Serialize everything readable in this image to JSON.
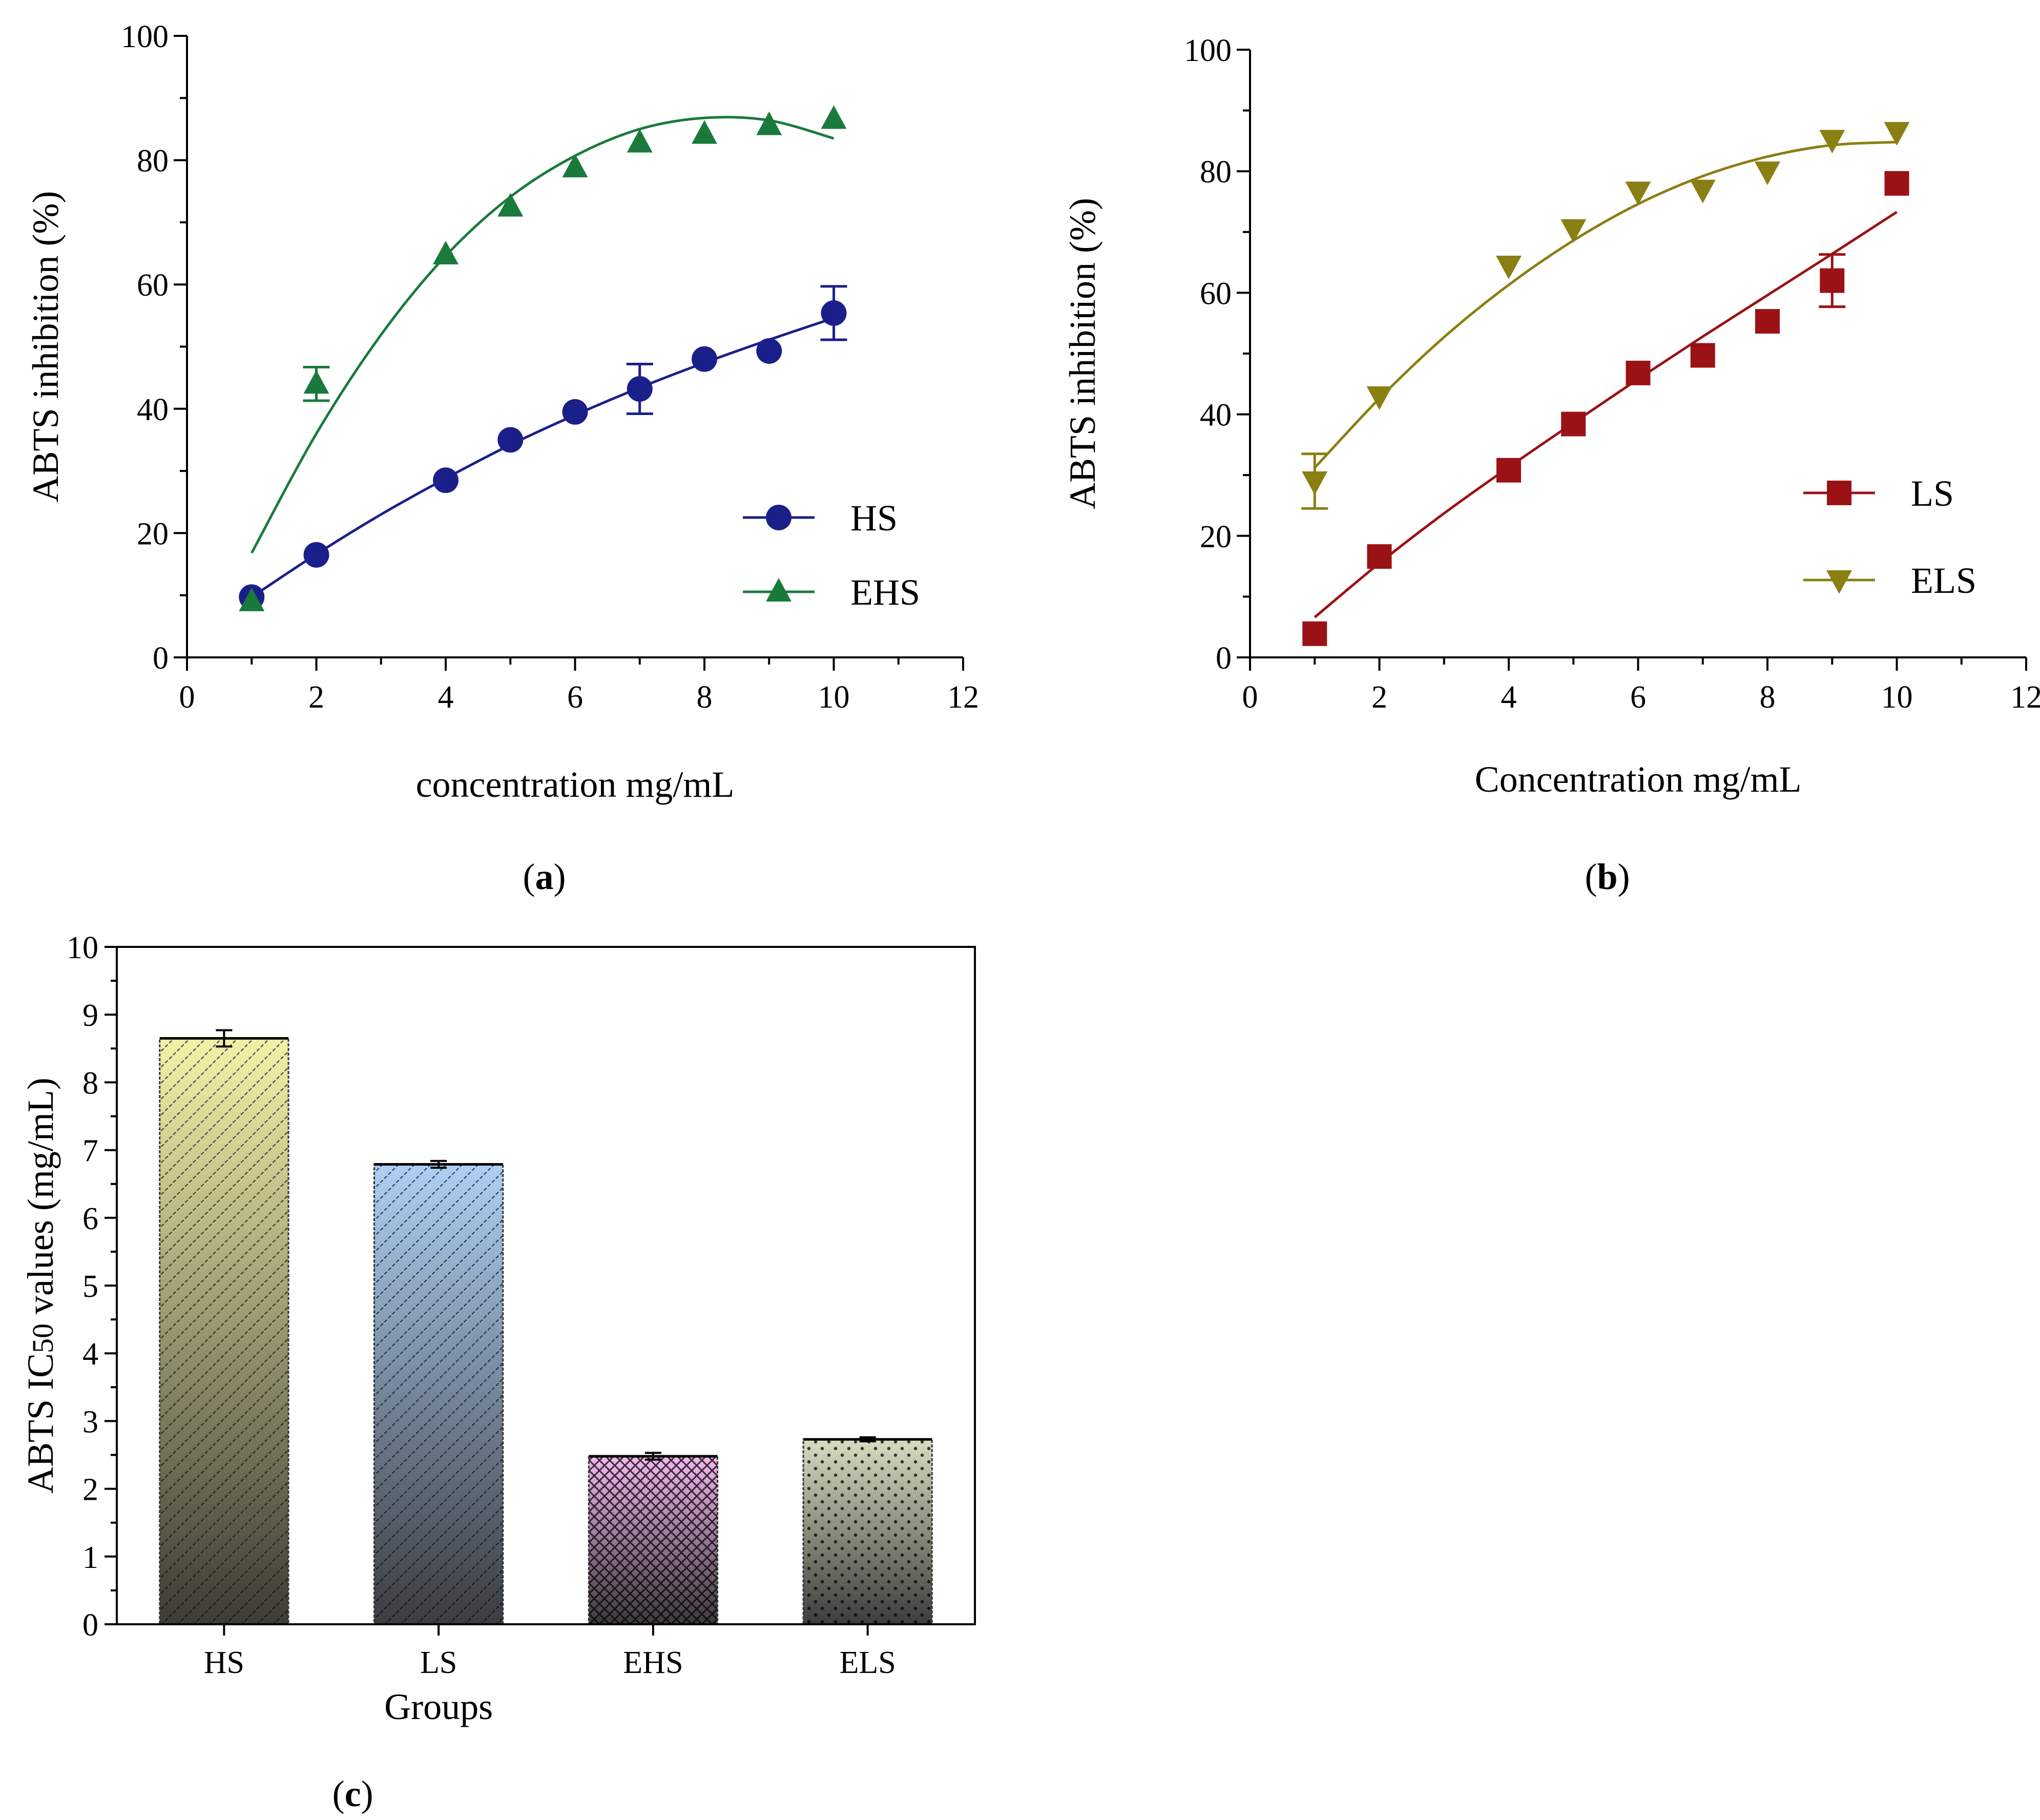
{
  "chart_data": [
    {
      "panel": "(a)",
      "type": "scatter",
      "xlabel": "concentration mg/mL",
      "ylabel": "ABTS inhibition (%)",
      "xlim": [
        0,
        12
      ],
      "ylim": [
        0,
        100
      ],
      "xticks": [
        0,
        2,
        4,
        6,
        8,
        10,
        12
      ],
      "yticks": [
        0,
        20,
        40,
        60,
        80,
        100
      ],
      "legend_position": "bottom-right",
      "fit_curves": true,
      "series": [
        {
          "name": "HS",
          "color": "#1b1f8a",
          "marker": "circle",
          "x": [
            1,
            2,
            4,
            5,
            6,
            7,
            8,
            9,
            10
          ],
          "y": [
            9.7,
            16.5,
            28.5,
            35.0,
            39.5,
            43.2,
            48.0,
            49.3,
            55.4
          ],
          "error": [
            0,
            0,
            0,
            0,
            0,
            4.0,
            0,
            0,
            4.3
          ],
          "fit_x": [
            1,
            2,
            3,
            4,
            5,
            6,
            7,
            8,
            9,
            10
          ],
          "fit_y": [
            9.7,
            16.6,
            23.0,
            28.8,
            34.2,
            39.0,
            43.4,
            47.4,
            51.1,
            54.6
          ]
        },
        {
          "name": "EHS",
          "color": "#1a7a3c",
          "marker": "triangle",
          "x": [
            1,
            2,
            4,
            5,
            6,
            7,
            8,
            9,
            10
          ],
          "y": [
            9.0,
            44.0,
            64.8,
            72.5,
            78.8,
            82.8,
            84.2,
            85.6,
            86.6
          ],
          "error": [
            0,
            2.7,
            0,
            0,
            0,
            0,
            0,
            0,
            0
          ],
          "fit_x": [
            1,
            2,
            3,
            4,
            5,
            6,
            7,
            8,
            9,
            10
          ],
          "fit_y": [
            16.8,
            36.0,
            51.9,
            64.6,
            74.1,
            80.7,
            85.0,
            86.8,
            86.4,
            83.5
          ]
        }
      ]
    },
    {
      "panel": "(b)",
      "type": "scatter",
      "xlabel": "Concentration mg/mL",
      "ylabel": "ABTS inhibition (%)",
      "xlim": [
        0,
        12
      ],
      "ylim": [
        0,
        100
      ],
      "xticks": [
        0,
        2,
        4,
        6,
        8,
        10,
        12
      ],
      "yticks": [
        0,
        20,
        40,
        60,
        80,
        100
      ],
      "legend_position": "bottom-right",
      "fit_curves": true,
      "series": [
        {
          "name": "LS",
          "color": "#9b1216",
          "marker": "square",
          "x": [
            1,
            2,
            4,
            5,
            6,
            7,
            8,
            9,
            10
          ],
          "y": [
            3.9,
            16.6,
            30.8,
            38.4,
            46.8,
            49.7,
            55.3,
            62.0,
            78.0
          ],
          "error": [
            0,
            0,
            0,
            0,
            0,
            0,
            0,
            4.3,
            0
          ],
          "fit_x": [
            1,
            2,
            3,
            4,
            5,
            6,
            7,
            8,
            9,
            10
          ],
          "fit_y": [
            6.6,
            15.5,
            23.7,
            31.3,
            38.6,
            45.8,
            52.8,
            59.6,
            66.4,
            73.3
          ]
        },
        {
          "name": "ELS",
          "color": "#8a7f12",
          "marker": "triangle-down",
          "x": [
            1,
            2,
            4,
            5,
            6,
            7,
            8,
            9,
            10
          ],
          "y": [
            29.0,
            43.0,
            64.5,
            70.5,
            76.7,
            77.0,
            80.0,
            85.2,
            86.5
          ],
          "error": [
            4.5,
            0,
            0,
            0,
            0,
            0,
            0,
            0,
            0
          ],
          "fit_x": [
            1,
            2,
            3,
            4,
            5,
            6,
            7,
            8,
            9,
            10
          ],
          "fit_y": [
            31.2,
            42.6,
            52.7,
            61.3,
            68.6,
            74.6,
            79.2,
            82.4,
            84.3,
            84.8
          ]
        }
      ]
    },
    {
      "panel": "(c)",
      "type": "bar",
      "xlabel": "Groups",
      "ylabel": "ABTS IC50 values (mg/mL)",
      "ylim": [
        0,
        10
      ],
      "yticks": [
        0,
        1,
        2,
        3,
        4,
        5,
        6,
        7,
        8,
        9,
        10
      ],
      "categories": [
        "HS",
        "LS",
        "EHS",
        "ELS"
      ],
      "values": [
        8.65,
        6.79,
        2.48,
        2.73
      ],
      "errors": [
        0.12,
        0.05,
        0.05,
        0.03
      ],
      "bar_colors": [
        [
          "#f4f2a8",
          "#3d3b35"
        ],
        [
          "#aed0f4",
          "#3b3c40"
        ],
        [
          "#f4b8f0",
          "#3c383c"
        ],
        [
          "#d8dcc0",
          "#3c3c3a"
        ]
      ],
      "patterns": [
        "hatch",
        "hatch",
        "crosshatch",
        "dots"
      ]
    }
  ]
}
